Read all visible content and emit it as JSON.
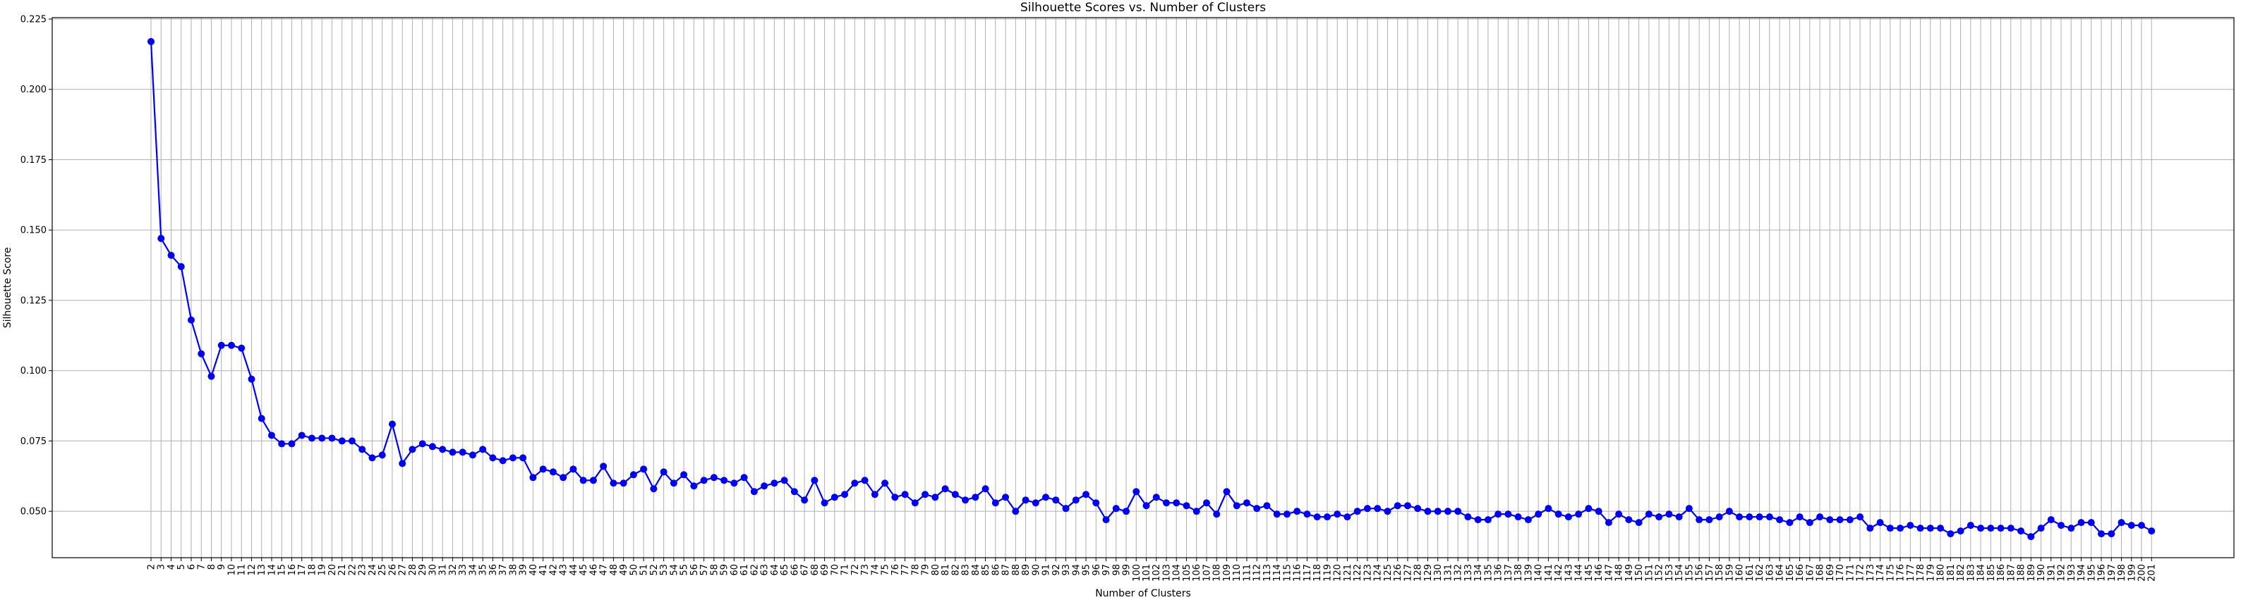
{
  "chart_data": {
    "type": "line",
    "title": "Silhouette Scores vs. Number of Clusters",
    "xlabel": "Number of Clusters",
    "ylabel": "Silhouette Score",
    "x_start": 2,
    "x_end": 200,
    "xlim": [
      2,
      200
    ],
    "ylim": [
      0.0335,
      0.2255
    ],
    "yticks": [
      0.05,
      0.075,
      0.1,
      0.125,
      0.15,
      0.175,
      0.2,
      0.225
    ],
    "ytick_labels": [
      "0.050",
      "0.075",
      "0.100",
      "0.125",
      "0.150",
      "0.175",
      "0.200",
      "0.225"
    ],
    "grid": true,
    "series": [
      {
        "name": "",
        "color": "#0000ff",
        "marker": "circle",
        "values": [
          0.217,
          0.147,
          0.141,
          0.137,
          0.118,
          0.106,
          0.098,
          0.109,
          0.109,
          0.108,
          0.097,
          0.083,
          0.077,
          0.074,
          0.074,
          0.077,
          0.076,
          0.076,
          0.076,
          0.075,
          0.075,
          0.072,
          0.069,
          0.07,
          0.081,
          0.067,
          0.072,
          0.074,
          0.073,
          0.072,
          0.071,
          0.071,
          0.07,
          0.072,
          0.069,
          0.068,
          0.069,
          0.069,
          0.062,
          0.065,
          0.064,
          0.062,
          0.065,
          0.061,
          0.061,
          0.066,
          0.06,
          0.06,
          0.063,
          0.065,
          0.058,
          0.064,
          0.06,
          0.063,
          0.059,
          0.061,
          0.062,
          0.061,
          0.06,
          0.062,
          0.057,
          0.059,
          0.06,
          0.061,
          0.057,
          0.054,
          0.061,
          0.053,
          0.055,
          0.056,
          0.06,
          0.061,
          0.056,
          0.06,
          0.055,
          0.056,
          0.053,
          0.056,
          0.055,
          0.058,
          0.056,
          0.054,
          0.055,
          0.058,
          0.053,
          0.055,
          0.05,
          0.054,
          0.053,
          0.055,
          0.054,
          0.051,
          0.054,
          0.056,
          0.053,
          0.047,
          0.051,
          0.05,
          0.057,
          0.052,
          0.055,
          0.053,
          0.053,
          0.052,
          0.05,
          0.053,
          0.049,
          0.057,
          0.052,
          0.053,
          0.051,
          0.052,
          0.049,
          0.049,
          0.05,
          0.049,
          0.048,
          0.048,
          0.049,
          0.048,
          0.05,
          0.051,
          0.051,
          0.05,
          0.052,
          0.052,
          0.051,
          0.05,
          0.05,
          0.05,
          0.05,
          0.048,
          0.047,
          0.047,
          0.049,
          0.049,
          0.048,
          0.047,
          0.049,
          0.051,
          0.049,
          0.048,
          0.049,
          0.051,
          0.05,
          0.046,
          0.049,
          0.047,
          0.046,
          0.049,
          0.048,
          0.049,
          0.048,
          0.051,
          0.047,
          0.047,
          0.048,
          0.05,
          0.048,
          0.048,
          0.048,
          0.048,
          0.047,
          0.046,
          0.048,
          0.046,
          0.048,
          0.047,
          0.047,
          0.047,
          0.048,
          0.044,
          0.046,
          0.044,
          0.044,
          0.045,
          0.044,
          0.044,
          0.044,
          0.042,
          0.043,
          0.045,
          0.044,
          0.044,
          0.044,
          0.044,
          0.043,
          0.041,
          0.044,
          0.047,
          0.045,
          0.044,
          0.046,
          0.046,
          0.042,
          0.042,
          0.046,
          0.045,
          0.045,
          0.043
        ]
      }
    ]
  }
}
